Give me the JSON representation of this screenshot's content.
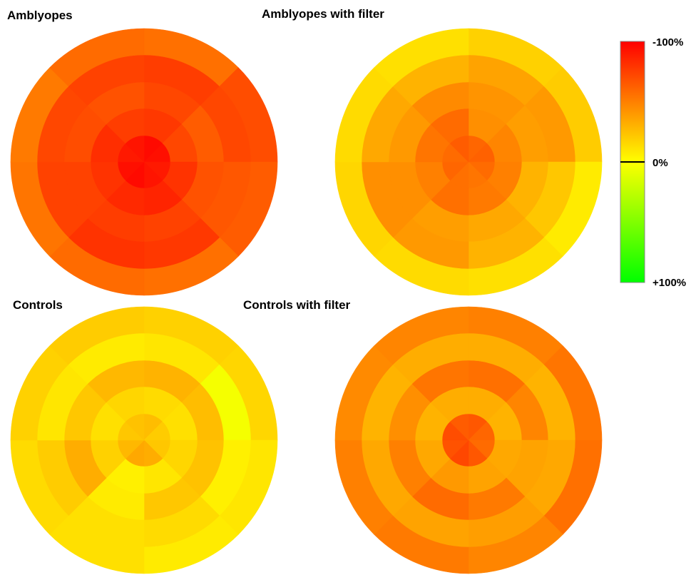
{
  "chart_data": {
    "type": "heatmap",
    "description_layout": "polar grid: 5 rings (center to outer) x 8 sectors each",
    "colorbar": {
      "labels": [
        "-100%",
        "0%",
        "+100%"
      ],
      "min": -100,
      "max": 100,
      "colors": {
        "-100": "#ff0000",
        "0": "#ffff00",
        "+100": "#00ff00"
      }
    },
    "panels": [
      {
        "title": "Amblyopes",
        "rings": [
          [
            -96,
            -94,
            -90,
            -92,
            -96,
            -94,
            -90,
            -92
          ],
          [
            -78,
            -72,
            -80,
            -86,
            -84,
            -80,
            -82,
            -76
          ],
          [
            -72,
            -64,
            -68,
            -74,
            -76,
            -74,
            -70,
            -68
          ],
          [
            -76,
            -72,
            -66,
            -78,
            -80,
            -74,
            -72,
            -74
          ],
          [
            -56,
            -70,
            -64,
            -56,
            -58,
            -54,
            -52,
            -58
          ]
        ]
      },
      {
        "title": "Amblyopes with filter",
        "rings": [
          [
            -60,
            -62,
            -58,
            -54,
            -56,
            -60,
            -58,
            -64
          ],
          [
            -44,
            -48,
            -50,
            -52,
            -56,
            -50,
            -54,
            -58
          ],
          [
            -42,
            -38,
            -30,
            -34,
            -38,
            -44,
            -40,
            -46
          ],
          [
            -36,
            -40,
            -22,
            -30,
            -40,
            -44,
            -34,
            -30
          ],
          [
            -18,
            -20,
            -8,
            -12,
            -14,
            -16,
            -14,
            -12
          ]
        ]
      },
      {
        "title": "Controls",
        "rings": [
          [
            -26,
            -20,
            -22,
            -32,
            -34,
            -28,
            -22,
            -24
          ],
          [
            -14,
            -12,
            -16,
            -10,
            -6,
            -18,
            -12,
            -16
          ],
          [
            -30,
            -26,
            -24,
            -22,
            -8,
            -32,
            -22,
            -28
          ],
          [
            -10,
            4,
            -6,
            -14,
            -12,
            -20,
            -10,
            -8
          ],
          [
            -18,
            -16,
            -10,
            -8,
            -12,
            -14,
            -18,
            -20
          ]
        ]
      },
      {
        "title": "Controls with filter",
        "rings": [
          [
            -66,
            -60,
            -58,
            -66,
            -72,
            -68,
            -70,
            -64
          ],
          [
            -32,
            -30,
            -34,
            -36,
            -40,
            -34,
            -30,
            -32
          ],
          [
            -56,
            -48,
            -36,
            -52,
            -58,
            -50,
            -44,
            -54
          ],
          [
            -32,
            -30,
            -34,
            -38,
            -36,
            -34,
            -30,
            -32
          ],
          [
            -50,
            -54,
            -56,
            -48,
            -52,
            -50,
            -46,
            -48
          ]
        ]
      }
    ]
  }
}
